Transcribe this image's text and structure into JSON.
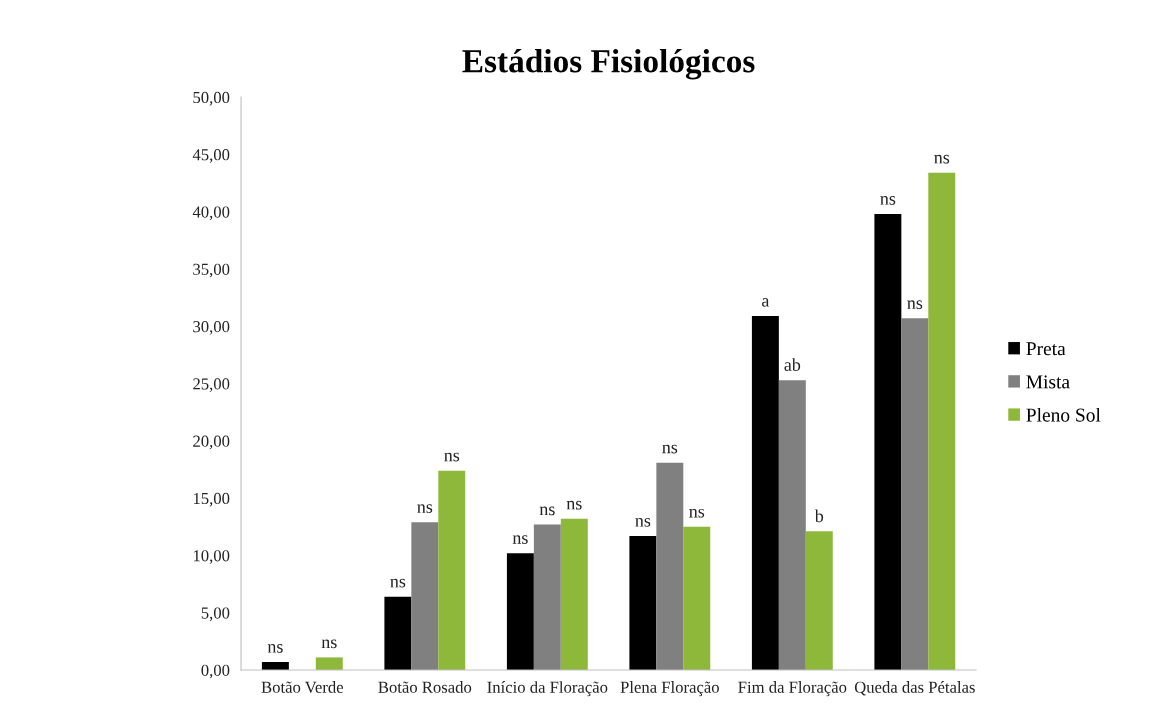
{
  "chart_data": {
    "type": "bar",
    "title": "Estádios Fisiológicos",
    "categories": [
      "Botão Verde",
      "Botão Rosado",
      "Início da Floração",
      "Plena Floração",
      "Fim da Floração",
      "Queda das Pétalas"
    ],
    "series": [
      {
        "name": "Preta",
        "color": "#000000",
        "values": [
          0.7,
          6.4,
          10.2,
          11.7,
          30.9,
          39.8
        ],
        "value_labels": [
          "ns",
          "ns",
          "ns",
          "ns",
          "a",
          "ns"
        ]
      },
      {
        "name": "Mista",
        "color": "#808080",
        "values": [
          0,
          12.9,
          12.7,
          18.1,
          25.3,
          30.7
        ],
        "value_labels": [
          null,
          "ns",
          "ns",
          "ns",
          "ab",
          "ns"
        ]
      },
      {
        "name": "Pleno Sol",
        "color": "#8db83a",
        "values": [
          1.1,
          17.4,
          13.2,
          12.5,
          12.1,
          43.4
        ],
        "value_labels": [
          "ns",
          "ns",
          "ns",
          "ns",
          "b",
          "ns"
        ]
      }
    ],
    "ylim": [
      0,
      50
    ],
    "yticks": [
      {
        "value": 0,
        "label": "0,00"
      },
      {
        "value": 5,
        "label": "5,00"
      },
      {
        "value": 10,
        "label": "10,00"
      },
      {
        "value": 15,
        "label": "15,00"
      },
      {
        "value": 20,
        "label": "20,00"
      },
      {
        "value": 25,
        "label": "25,00"
      },
      {
        "value": 30,
        "label": "30,00"
      },
      {
        "value": 35,
        "label": "35,00"
      },
      {
        "value": 40,
        "label": "40,00"
      },
      {
        "value": 45,
        "label": "45,00"
      },
      {
        "value": 50,
        "label": "50,00"
      }
    ],
    "grid": false,
    "legend": "right"
  }
}
